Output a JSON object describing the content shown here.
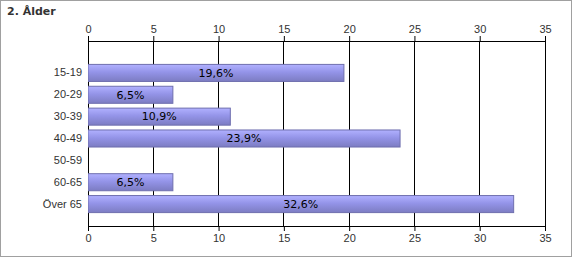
{
  "chart_data": {
    "type": "bar",
    "title": "2. Ålder",
    "orientation": "horizontal",
    "categories": [
      "15-19",
      "20-29",
      "30-39",
      "40-49",
      "50-59",
      "60-65",
      "Över 65"
    ],
    "values": [
      19.6,
      6.5,
      10.9,
      23.9,
      0,
      6.5,
      32.6
    ],
    "value_labels": [
      "19,6%",
      "6,5%",
      "10,9%",
      "23,9%",
      null,
      "6,5%",
      "32,6%"
    ],
    "color": "#9494e8",
    "xlim": [
      0,
      35
    ],
    "xticks": [
      0,
      5,
      10,
      15,
      20,
      25,
      30,
      35
    ],
    "grid": true,
    "data_labels": true
  }
}
